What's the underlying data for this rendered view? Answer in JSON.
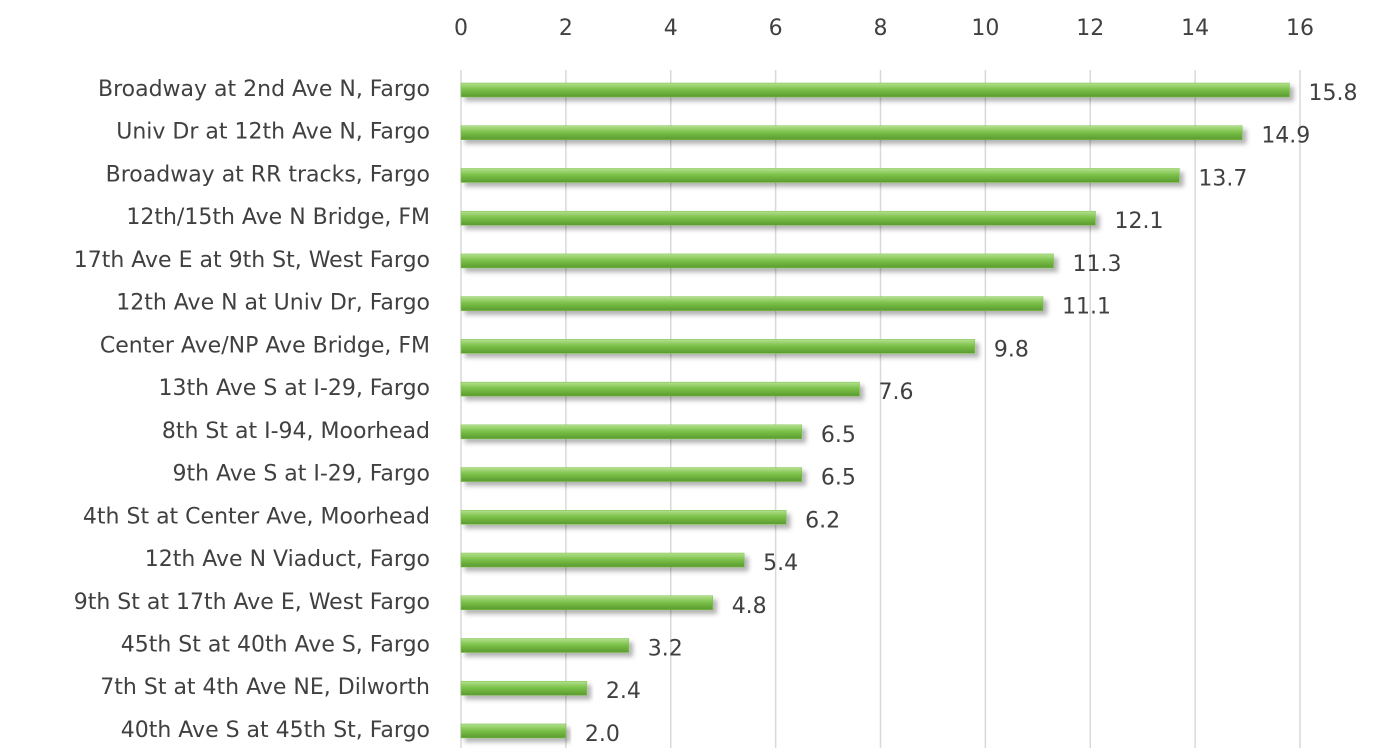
{
  "chart_data": {
    "type": "bar",
    "orientation": "horizontal",
    "categories": [
      "Broadway at 2nd Ave N, Fargo",
      "Univ Dr at 12th Ave N, Fargo",
      "Broadway at RR tracks, Fargo",
      "12th/15th Ave N Bridge, FM",
      "17th Ave E at 9th St, West Fargo",
      "12th Ave N at Univ Dr, Fargo",
      "Center Ave/NP Ave Bridge, FM",
      "13th Ave S at I-29, Fargo",
      "8th St at I-94, Moorhead",
      "9th Ave S at I-29, Fargo",
      "4th St at Center Ave, Moorhead",
      "12th Ave N Viaduct, Fargo",
      "9th St at 17th Ave E, West Fargo",
      "45th St at 40th Ave S, Fargo",
      "7th St at 4th Ave NE, Dilworth",
      "40th Ave S at 45th St, Fargo"
    ],
    "values": [
      15.8,
      14.9,
      13.7,
      12.1,
      11.3,
      11.1,
      9.8,
      7.6,
      6.5,
      6.5,
      6.2,
      5.4,
      4.8,
      3.2,
      2.4,
      2.0
    ],
    "value_labels": [
      "15.8",
      "14.9",
      "13.7",
      "12.1",
      "11.3",
      "11.1",
      "9.8",
      "7.6",
      "6.5",
      "6.5",
      "6.2",
      "5.4",
      "4.8",
      "3.2",
      "2.4",
      "2.0"
    ],
    "color": "#7cc24a",
    "xlim": [
      0,
      16
    ],
    "xticks": [
      0,
      2,
      4,
      6,
      8,
      10,
      12,
      14,
      16
    ],
    "grid": true
  }
}
